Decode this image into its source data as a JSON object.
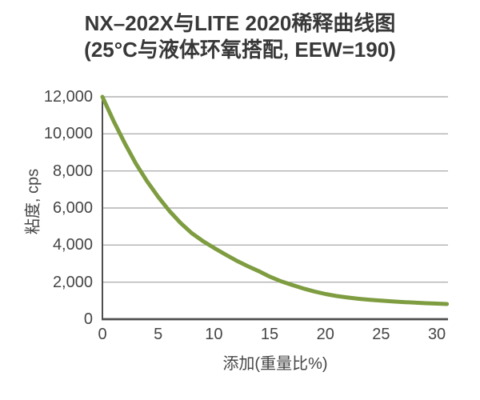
{
  "title": {
    "line1": "NX–202X与LITE 2020稀释曲线图",
    "line2": "(25°C与液体环氧搭配, EEW=190)"
  },
  "chart_data": {
    "type": "line",
    "title": "NX–202X与LITE 2020稀释曲线图",
    "subtitle": "(25°C与液体环氧搭配, EEW=190)",
    "xlabel": "添加(重量比%)",
    "ylabel": "粘度, cps",
    "xlim": [
      0,
      31
    ],
    "ylim": [
      0,
      12000
    ],
    "x_ticks": [
      0,
      5,
      10,
      15,
      20,
      25,
      30
    ],
    "y_ticks": [
      0,
      2000,
      4000,
      6000,
      8000,
      10000,
      12000
    ],
    "y_tick_labels": [
      "0",
      "2,000",
      "4,000",
      "6,000",
      "8,000",
      "10,000",
      "12,000"
    ],
    "grid": "horizontal",
    "legend": "none",
    "colors": {
      "line": "#7e9c40",
      "grid": "#b0b0b0",
      "axis": "#4f4f4f",
      "text": "#454545",
      "title": "#383838",
      "background": "#ffffff"
    },
    "series": [
      {
        "name": "NX-202X与LITE 2020稀释曲线",
        "x": [
          0,
          1,
          2,
          3,
          4,
          5,
          6,
          7,
          8,
          9,
          10,
          11,
          12,
          13,
          14,
          15,
          16,
          17,
          18,
          19,
          20,
          21,
          22,
          23,
          24,
          25,
          26,
          27,
          28,
          29,
          30,
          30.9
        ],
        "y": [
          12000,
          10700,
          9500,
          8400,
          7450,
          6600,
          5850,
          5200,
          4650,
          4220,
          3850,
          3500,
          3170,
          2870,
          2600,
          2300,
          2050,
          1850,
          1660,
          1500,
          1360,
          1250,
          1170,
          1100,
          1045,
          1000,
          960,
          925,
          893,
          865,
          840,
          820
        ]
      }
    ]
  }
}
